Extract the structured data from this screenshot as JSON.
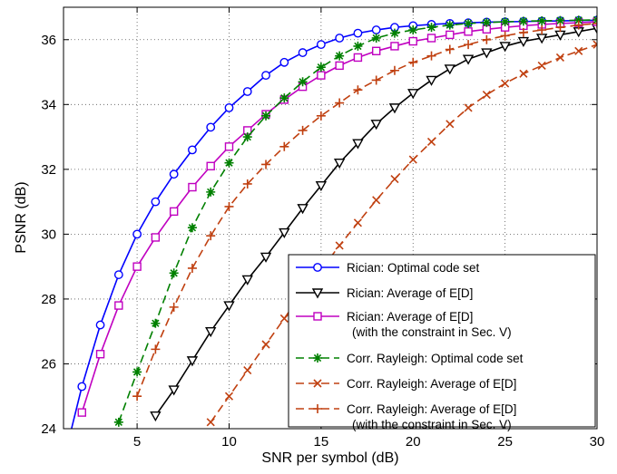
{
  "chart_data": {
    "type": "line",
    "title": "",
    "xlabel": "SNR per symbol (dB)",
    "ylabel": "PSNR (dB)",
    "xlim": [
      1,
      30
    ],
    "ylim": [
      24,
      37
    ],
    "xticks": [
      5,
      10,
      15,
      20,
      25,
      30
    ],
    "yticks": [
      24,
      26,
      28,
      30,
      32,
      34,
      36
    ],
    "grid": true,
    "legend_position": "bottom-right",
    "x": [
      1,
      2,
      3,
      4,
      5,
      6,
      7,
      8,
      9,
      10,
      11,
      12,
      13,
      14,
      15,
      16,
      17,
      18,
      19,
      20,
      21,
      22,
      23,
      24,
      25,
      26,
      27,
      28,
      29,
      30
    ],
    "series": [
      {
        "name": [
          "Rician:  Optimal code set"
        ],
        "color": "#0000ff",
        "dash": "solid",
        "marker": "circle",
        "values": [
          23.0,
          25.3,
          27.2,
          28.75,
          30.0,
          31.0,
          31.85,
          32.6,
          33.3,
          33.9,
          34.4,
          34.9,
          35.3,
          35.6,
          35.85,
          36.05,
          36.2,
          36.3,
          36.38,
          36.43,
          36.47,
          36.5,
          36.52,
          36.54,
          36.55,
          36.56,
          36.57,
          36.58,
          36.59,
          36.6
        ]
      },
      {
        "name": [
          "Rician:  Average of E[D]"
        ],
        "color": "#000000",
        "dash": "solid",
        "marker": "triangle-down",
        "values": [
          null,
          null,
          null,
          null,
          null,
          24.4,
          25.2,
          26.1,
          27.0,
          27.8,
          28.6,
          29.3,
          30.05,
          30.8,
          31.5,
          32.2,
          32.8,
          33.4,
          33.9,
          34.35,
          34.75,
          35.1,
          35.4,
          35.6,
          35.8,
          35.95,
          36.05,
          36.15,
          36.25,
          36.35
        ]
      },
      {
        "name": [
          "Rician:  Average of E[D]",
          "(with the constraint in Sec. V)"
        ],
        "color": "#c000c0",
        "dash": "solid",
        "marker": "square",
        "values": [
          null,
          24.5,
          26.3,
          27.8,
          29.0,
          29.9,
          30.7,
          31.45,
          32.1,
          32.7,
          33.2,
          33.7,
          34.15,
          34.55,
          34.9,
          35.2,
          35.45,
          35.65,
          35.8,
          35.95,
          36.05,
          36.15,
          36.25,
          36.32,
          36.38,
          36.43,
          36.47,
          36.5,
          36.52,
          36.55
        ]
      },
      {
        "name": [
          "Corr. Rayleigh:  Optimal code set"
        ],
        "color": "#008000",
        "dash": "dashed",
        "marker": "star",
        "values": [
          null,
          null,
          null,
          24.2,
          25.75,
          27.25,
          28.8,
          30.2,
          31.3,
          32.2,
          33.0,
          33.65,
          34.2,
          34.7,
          35.15,
          35.5,
          35.8,
          36.05,
          36.2,
          36.3,
          36.38,
          36.45,
          36.5,
          36.53,
          36.55,
          36.57,
          36.58,
          36.59,
          36.6,
          36.61
        ]
      },
      {
        "name": [
          "Corr. Rayleigh:  Average of E[D]"
        ],
        "color": "#c04010",
        "dash": "dashed",
        "marker": "x",
        "values": [
          null,
          null,
          null,
          null,
          null,
          null,
          null,
          null,
          24.2,
          25.0,
          25.8,
          26.6,
          27.4,
          28.2,
          28.9,
          29.65,
          30.35,
          31.05,
          31.7,
          32.3,
          32.85,
          33.4,
          33.9,
          34.3,
          34.65,
          34.95,
          35.2,
          35.45,
          35.65,
          35.85
        ]
      },
      {
        "name": [
          "Corr. Rayleigh:  Average of E[D]",
          "(with the constraint in Sec. V)"
        ],
        "color": "#c04010",
        "dash": "dashed",
        "marker": "plus",
        "values": [
          null,
          null,
          null,
          null,
          25.0,
          26.45,
          27.75,
          28.95,
          29.95,
          30.85,
          31.55,
          32.15,
          32.7,
          33.2,
          33.65,
          34.05,
          34.45,
          34.75,
          35.05,
          35.3,
          35.5,
          35.7,
          35.85,
          36.0,
          36.12,
          36.22,
          36.3,
          36.38,
          36.45,
          36.5
        ]
      }
    ]
  }
}
